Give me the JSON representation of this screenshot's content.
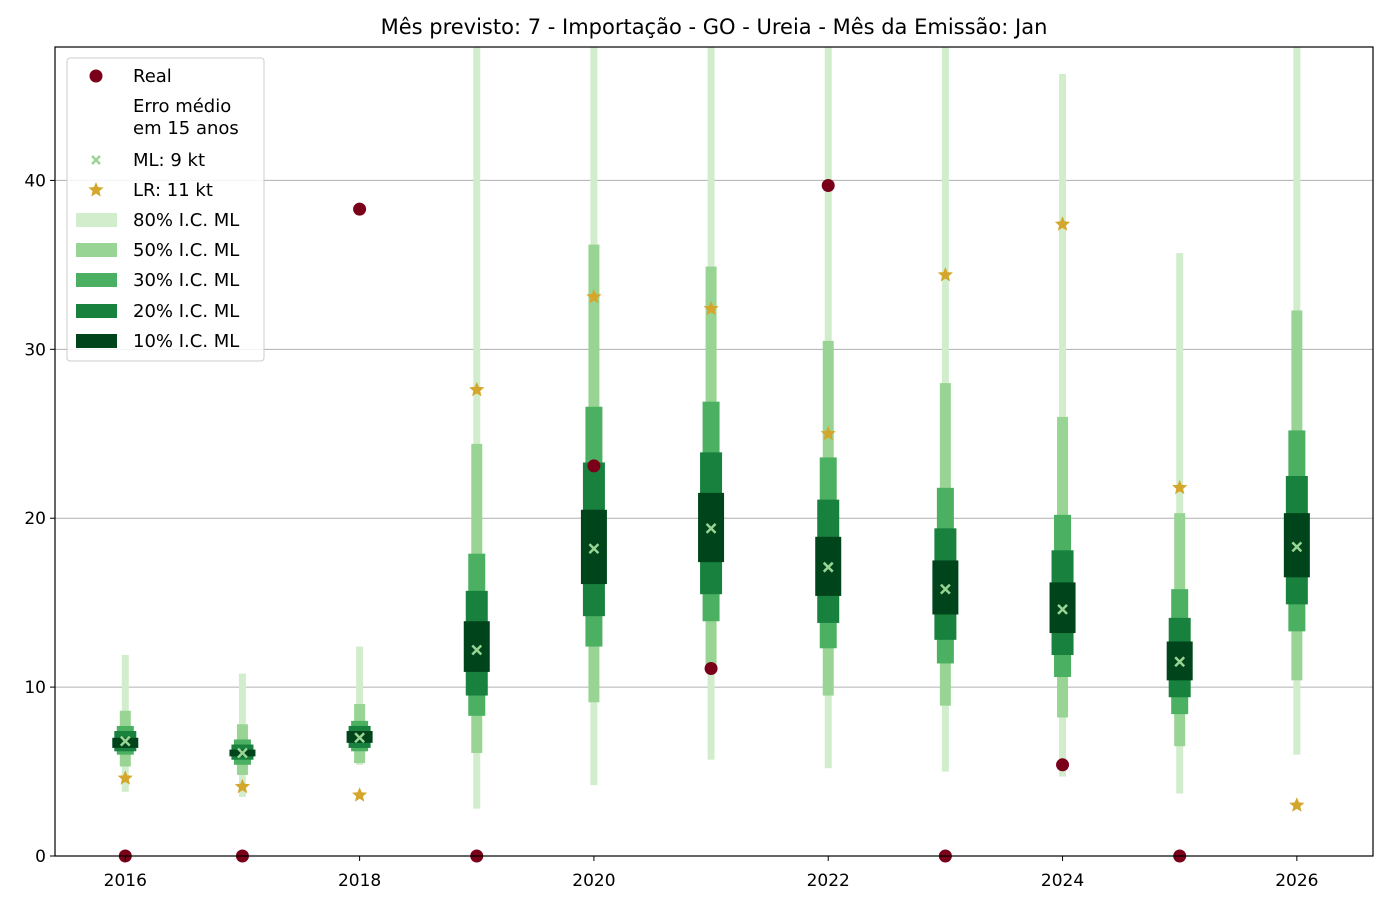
{
  "chart_data": {
    "type": "box-interval",
    "title": "Mês previsto: 7 - Importação - GO - Ureia - Mês da Emissão: Jan",
    "xlabel": "",
    "ylabel": "",
    "xlim": [
      2015.4,
      2026.65
    ],
    "ylim": [
      0,
      47.9
    ],
    "x_ticks": [
      "2016",
      "2018",
      "2020",
      "2022",
      "2024",
      "2026"
    ],
    "y_ticks": [
      "0",
      "10",
      "20",
      "30",
      "40"
    ],
    "grid": "horizontal",
    "legend_position": "top-left",
    "legend": {
      "real": "Real",
      "header": "Erro médio\nem 15 anos",
      "ml": "ML: 9 kt",
      "lr": "LR: 11 kt",
      "ci80": "80% I.C. ML",
      "ci50": "50% I.C. ML",
      "ci30": "30% I.C. ML",
      "ci20": "20% I.C. ML",
      "ci10": "10% I.C. ML"
    },
    "colors": {
      "ci80": "#d2edcc",
      "ci50": "#98d594",
      "ci30": "#4bb062",
      "ci20": "#17813d",
      "ci10": "#00441b",
      "real": "#7a0019",
      "lr": "#d4a72c",
      "ml": "#98d594"
    },
    "years": [
      2016,
      2017,
      2018,
      2019,
      2020,
      2021,
      2022,
      2023,
      2024,
      2025,
      2026
    ],
    "series": {
      "ci80": [
        [
          3.8,
          11.9
        ],
        [
          3.5,
          10.8
        ],
        [
          5.4,
          12.4
        ],
        [
          2.8,
          50
        ],
        [
          4.2,
          50
        ],
        [
          5.7,
          50
        ],
        [
          5.2,
          50
        ],
        [
          5.0,
          50
        ],
        [
          4.7,
          46.3
        ],
        [
          3.7,
          35.7
        ],
        [
          6.0,
          50
        ]
      ],
      "ci50": [
        [
          5.3,
          8.6
        ],
        [
          4.8,
          7.8
        ],
        [
          5.5,
          9.0
        ],
        [
          6.1,
          24.4
        ],
        [
          9.1,
          36.2
        ],
        [
          10.9,
          34.9
        ],
        [
          9.5,
          30.5
        ],
        [
          8.9,
          28.0
        ],
        [
          8.2,
          26.0
        ],
        [
          6.5,
          20.3
        ],
        [
          10.4,
          32.3
        ]
      ],
      "ci30": [
        [
          6.0,
          7.7
        ],
        [
          5.4,
          6.9
        ],
        [
          6.2,
          8.0
        ],
        [
          8.3,
          17.9
        ],
        [
          12.4,
          26.6
        ],
        [
          13.9,
          26.9
        ],
        [
          12.3,
          23.6
        ],
        [
          11.4,
          21.8
        ],
        [
          10.6,
          20.2
        ],
        [
          8.4,
          15.8
        ],
        [
          13.3,
          25.2
        ]
      ],
      "ci20": [
        [
          6.2,
          7.4
        ],
        [
          5.7,
          6.6
        ],
        [
          6.4,
          7.7
        ],
        [
          9.5,
          15.7
        ],
        [
          14.2,
          23.3
        ],
        [
          15.5,
          23.9
        ],
        [
          13.8,
          21.1
        ],
        [
          12.8,
          19.4
        ],
        [
          11.9,
          18.1
        ],
        [
          9.4,
          14.1
        ],
        [
          14.9,
          22.5
        ]
      ],
      "ci10": [
        [
          6.4,
          7.0
        ],
        [
          5.9,
          6.3
        ],
        [
          6.7,
          7.4
        ],
        [
          10.9,
          13.9
        ],
        [
          16.1,
          20.5
        ],
        [
          17.4,
          21.5
        ],
        [
          15.4,
          18.9
        ],
        [
          14.3,
          17.5
        ],
        [
          13.2,
          16.2
        ],
        [
          10.4,
          12.7
        ],
        [
          16.5,
          20.3
        ]
      ],
      "ml": [
        6.8,
        6.1,
        7.0,
        12.2,
        18.2,
        19.4,
        17.1,
        15.8,
        14.6,
        11.5,
        18.3
      ],
      "lr": [
        4.6,
        4.1,
        3.6,
        27.6,
        33.1,
        32.4,
        25.0,
        34.4,
        37.4,
        21.8,
        3.0
      ],
      "real": [
        0,
        0,
        38.3,
        0,
        23.1,
        11.1,
        39.7,
        0,
        5.4,
        0,
        null
      ]
    }
  }
}
